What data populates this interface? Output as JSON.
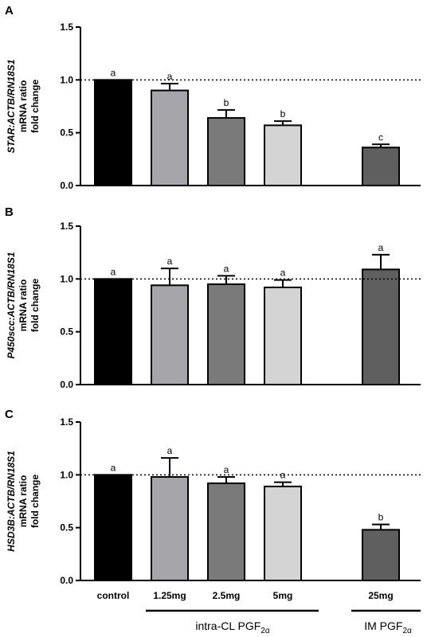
{
  "chart_data": [
    {
      "type": "bar",
      "panel": "A",
      "ylabel": {
        "italic": "STAR:ACTB/RN18S1",
        "line2": "mRNA ratio",
        "line3": "fold change"
      },
      "ylim": [
        0,
        1.5
      ],
      "yticks": [
        "0.0",
        "0.5",
        "1.0",
        "1.5"
      ],
      "reference_line": 1.0,
      "categories": [
        "control",
        "1.25mg",
        "2.5mg",
        "5mg",
        "25mg"
      ],
      "values": [
        1.0,
        0.9,
        0.64,
        0.57,
        0.36
      ],
      "errors": [
        0.0,
        0.065,
        0.075,
        0.04,
        0.03
      ],
      "letters": [
        "a",
        "a",
        "b",
        "b",
        "c"
      ]
    },
    {
      "type": "bar",
      "panel": "B",
      "ylabel": {
        "italic": "P450scc:ACTB/RN18S1",
        "line2": "mRNA ratio",
        "line3": "fold change"
      },
      "ylim": [
        0,
        1.5
      ],
      "yticks": [
        "0.0",
        "0.5",
        "1.0",
        "1.5"
      ],
      "reference_line": 1.0,
      "categories": [
        "control",
        "1.25mg",
        "2.5mg",
        "5mg",
        "25mg"
      ],
      "values": [
        1.0,
        0.94,
        0.95,
        0.92,
        1.09
      ],
      "errors": [
        0.0,
        0.16,
        0.08,
        0.07,
        0.14
      ],
      "letters": [
        "a",
        "a",
        "a",
        "a",
        "a"
      ]
    },
    {
      "type": "bar",
      "panel": "C",
      "ylabel": {
        "italic": "HSD3B:ACTB/RN18S1",
        "line2": "mRNA ratio",
        "line3": "fold change"
      },
      "ylim": [
        0,
        1.5
      ],
      "yticks": [
        "0.0",
        "0.5",
        "1.0",
        "1.5"
      ],
      "reference_line": 1.0,
      "categories": [
        "control",
        "1.25mg",
        "2.5mg",
        "5mg",
        "25mg"
      ],
      "values": [
        1.0,
        0.98,
        0.92,
        0.89,
        0.48
      ],
      "errors": [
        0.0,
        0.18,
        0.06,
        0.04,
        0.05
      ],
      "letters": [
        "a",
        "a",
        "a",
        "a",
        "b"
      ]
    }
  ],
  "bar_colors": [
    "#000000",
    "#a6a6aa",
    "#7a7a7a",
    "#d4d4d4",
    "#5f5f5f"
  ],
  "group_labels": {
    "intra": {
      "main": "intra-CL PGF",
      "sub": "2α"
    },
    "im": {
      "main": "IM PGF",
      "sub": "2α"
    }
  }
}
